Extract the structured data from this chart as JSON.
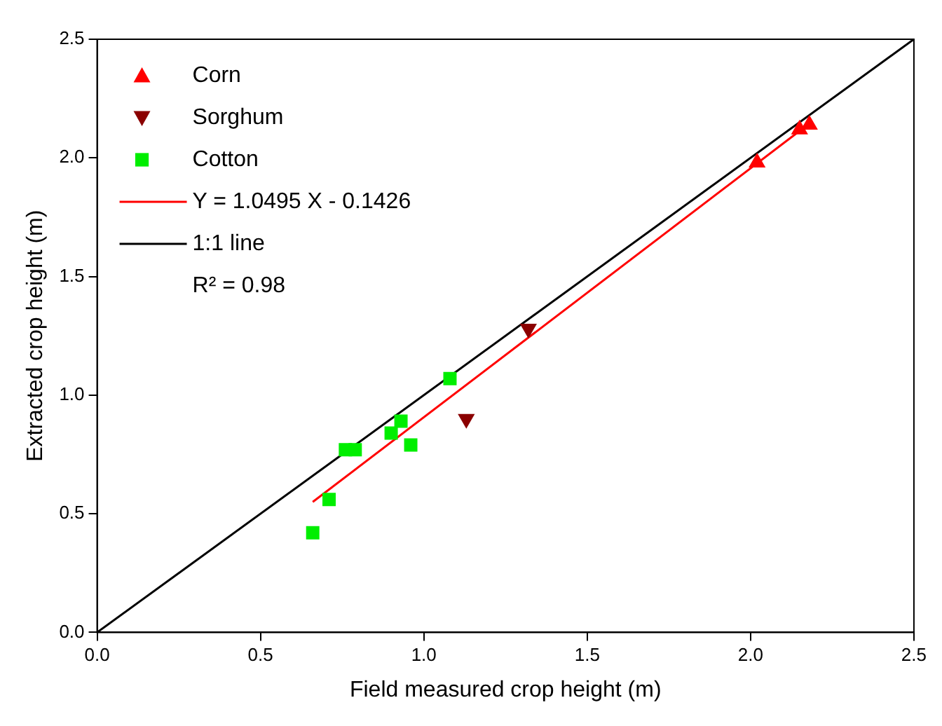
{
  "chart_data": {
    "type": "scatter",
    "xlabel": "Field measured crop height (m)",
    "ylabel": "Extracted crop height (m)",
    "xlim": [
      0,
      2.5
    ],
    "ylim": [
      0,
      2.5
    ],
    "xticks": [
      {
        "value": 0,
        "label": "0.0"
      },
      0.5,
      {
        "value": 1,
        "label": "1.0"
      },
      1.5,
      {
        "value": 2,
        "label": "2.0"
      },
      2.5
    ],
    "yticks": [
      {
        "value": 0,
        "label": "0.0"
      },
      0.5,
      {
        "value": 1,
        "label": "1.0"
      },
      1.5,
      {
        "value": 2,
        "label": "2.0"
      },
      2.5
    ],
    "grid": false,
    "legend": "top left",
    "series": [
      {
        "name": "Corn",
        "marker": "triangle",
        "color": "#ff0000",
        "x": [
          2.02,
          2.15,
          2.18
        ],
        "values": [
          1.98,
          2.12,
          2.14
        ]
      },
      {
        "name": "Sorghum",
        "marker": "triangle-down",
        "color": "#8b0000",
        "x": [
          1.32,
          1.13
        ],
        "values": [
          1.28,
          0.9
        ]
      },
      {
        "name": "Cotton",
        "marker": "square",
        "color": "#00ee00",
        "x": [
          0.66,
          0.71,
          0.76,
          0.79,
          0.9,
          0.93,
          0.96,
          1.08
        ],
        "values": [
          0.42,
          0.56,
          0.77,
          0.77,
          0.84,
          0.89,
          0.79,
          1.07
        ]
      },
      {
        "name": "Y = 1.0495 X - 0.1426",
        "type": "line",
        "marker": "none",
        "color": "#ff0000",
        "x": [
          0.66,
          2.18
        ],
        "values": [
          0.55,
          2.145
        ]
      },
      {
        "name": "1:1 line",
        "type": "line",
        "marker": "none",
        "color": "#000000",
        "x": [
          0,
          2.5
        ],
        "values": [
          0,
          2.5
        ]
      }
    ],
    "annotations": [
      "R² = 0.98"
    ]
  }
}
